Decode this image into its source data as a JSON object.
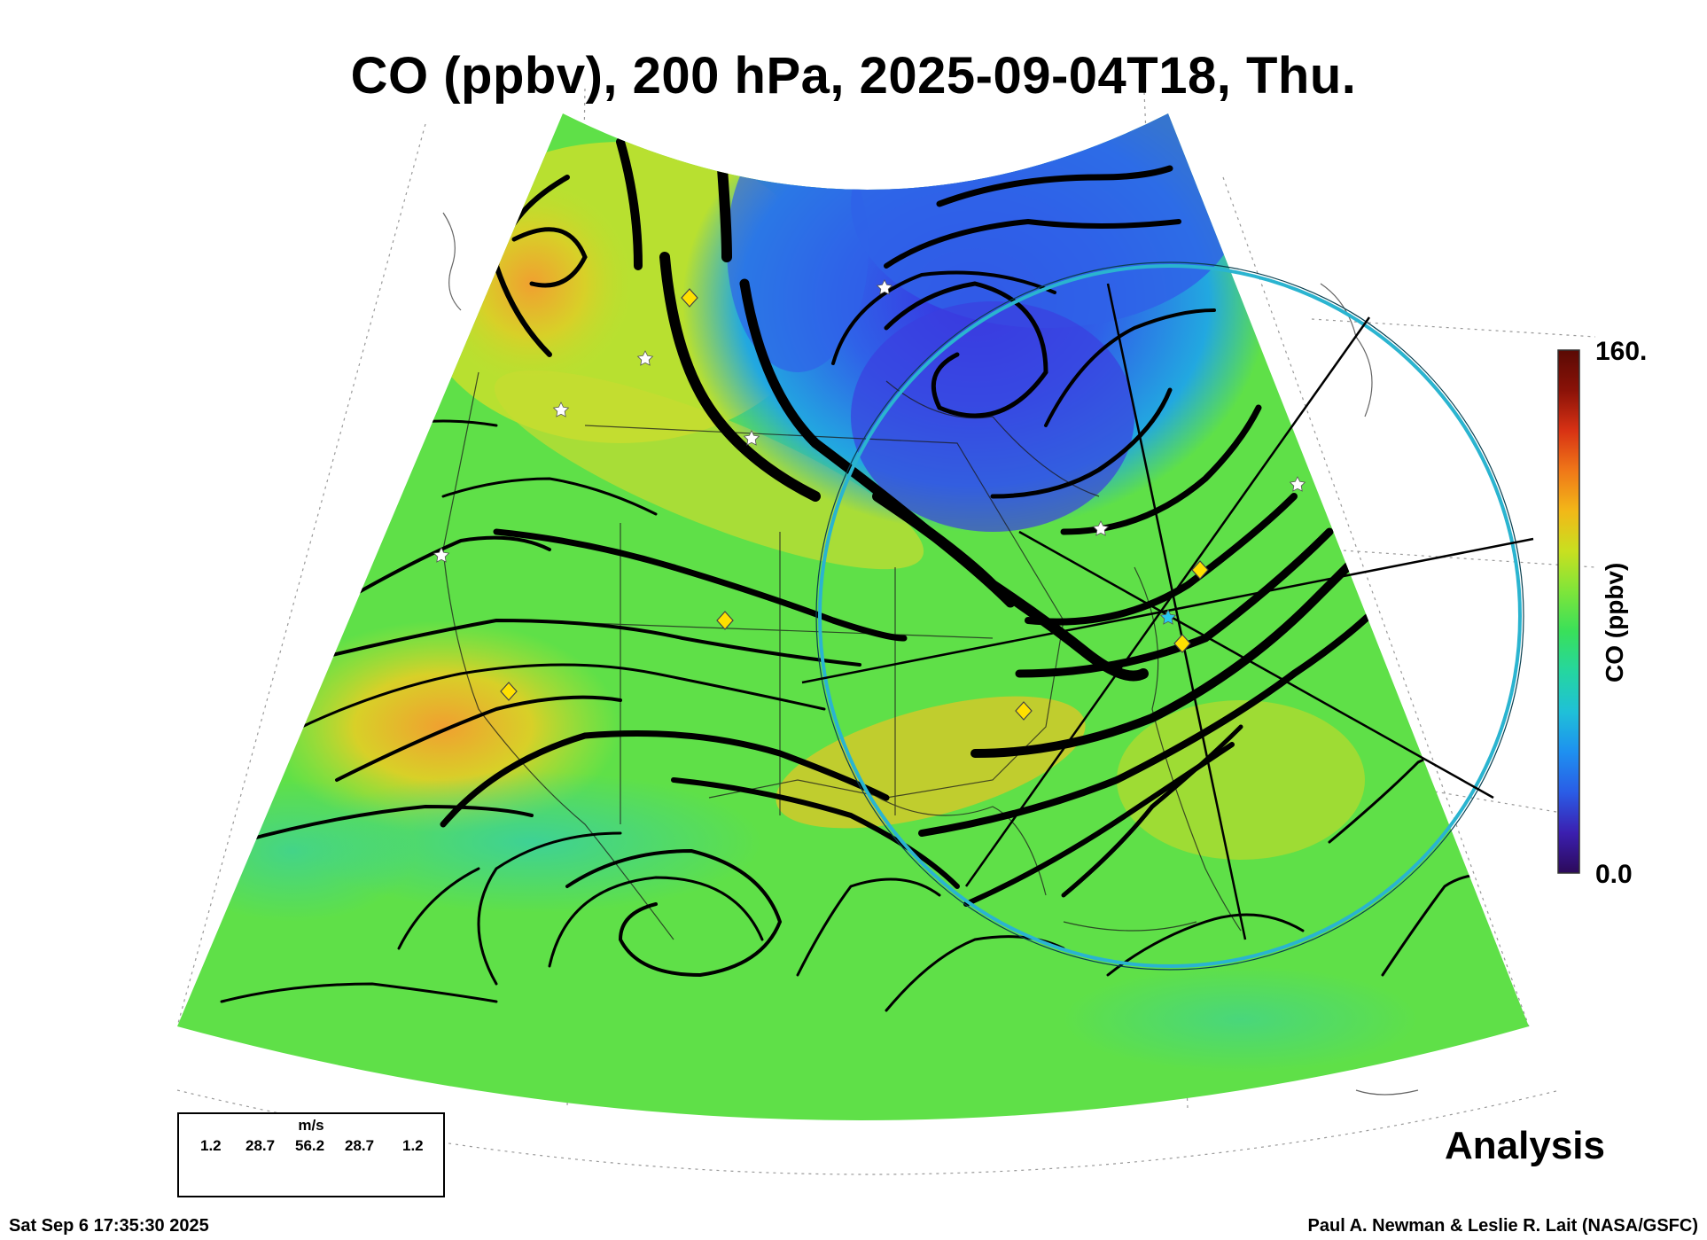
{
  "title": "CO (ppbv), 200 hPa, 2025-09-04T18, Thu.",
  "analysis_label": "Analysis",
  "timestamp": "Sat Sep  6 17:35:30 2025",
  "credit": "Paul A. Newman & Leslie R. Lait (NASA/GSFC)",
  "colorbar": {
    "title": "CO (ppbv)",
    "max_label": "160.",
    "min_label": "0.0",
    "min": 0,
    "max": 160,
    "colors": [
      "#2c0a5a",
      "#3b1fb0",
      "#2a5ce6",
      "#1e90f0",
      "#1fc0d8",
      "#25d6a0",
      "#39e05a",
      "#7ee53a",
      "#c8e020",
      "#f2b818",
      "#f07818",
      "#d83214",
      "#8a1208",
      "#5a0a04"
    ]
  },
  "wind_legend": {
    "units": "m/s",
    "values": [
      "1.2",
      "28.7",
      "56.2",
      "28.7",
      "1.2"
    ]
  },
  "map": {
    "field_colors": {
      "low_co": "#2f62e8",
      "mid_low": "#22c4d0",
      "background": "#5fe048",
      "moderate": "#a8e02a",
      "elevated": "#e8c020",
      "high": "#f0a030"
    },
    "circle_color": "#2ab4d0",
    "station_markers": {
      "star_color": "#ffffff",
      "diamond_color": "#ffe000"
    }
  }
}
